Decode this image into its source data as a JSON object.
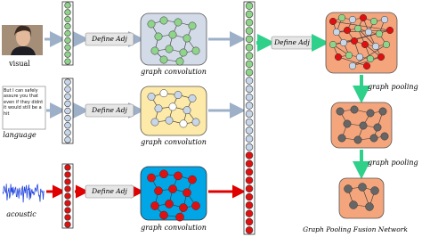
{
  "inputs": [
    {
      "label": "visual"
    },
    {
      "label": "language",
      "quote": "But I can safely assure you that even if they didnt it would still be a hit"
    },
    {
      "label": "acoustic"
    }
  ],
  "define_adj": [
    "Define Adj",
    "Define Adj",
    "Define Adj",
    "Define Adj"
  ],
  "graph_convolution": [
    "graph convolution",
    "graph convolution",
    "graph convolution"
  ],
  "pooling": [
    "graph pooling",
    "graph pooling"
  ],
  "fusion_title": "Graph Pooling Fusion Network"
}
